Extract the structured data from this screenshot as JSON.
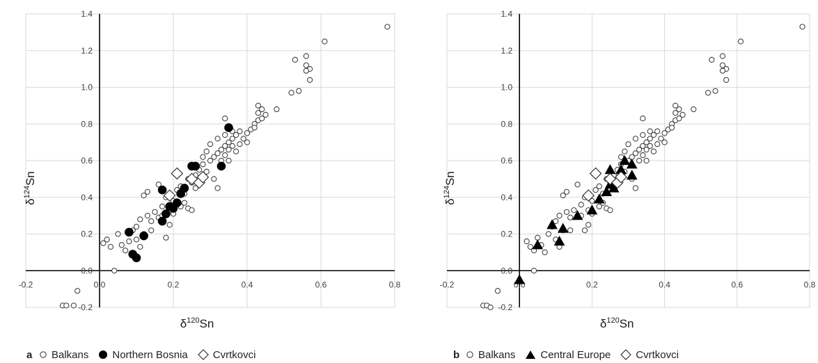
{
  "colors": {
    "open_marker": "#ffffff",
    "marker_edge": "#444444",
    "filled_marker": "#000000",
    "grid": "#d9d9d9"
  },
  "chart_data": [
    {
      "type": "scatter",
      "panel_label": "a",
      "xlabel": "δ¹²⁰Sn",
      "xlabel_base": "δ",
      "xlabel_sup": "120",
      "xlabel_tail": "Sn",
      "ylabel_base": "δ",
      "ylabel_sup": "124",
      "ylabel_tail": "Sn",
      "xlim": [
        -0.2,
        0.8
      ],
      "ylim": [
        -0.2,
        1.4
      ],
      "x_ticks": [
        -0.2,
        0.0,
        0.2,
        0.4,
        0.6,
        0.8
      ],
      "y_ticks": [
        -0.2,
        0.0,
        0.2,
        0.4,
        0.6,
        0.8,
        1.0,
        1.2,
        1.4
      ],
      "x_tick_labels": [
        "-0.2",
        "0.0",
        "0.2",
        "0.4",
        "0.6",
        "0.8"
      ],
      "y_tick_labels": [
        "-0.2",
        "0.0",
        "0.2",
        "0.4",
        "0.6",
        "0.8",
        "1.0",
        "1.2",
        "1.4"
      ],
      "grid": true,
      "legend_position": "bottom",
      "series": [
        {
          "name": "Balkans",
          "marker": "open-circle",
          "points": [
            [
              -0.1,
              -0.19
            ],
            [
              -0.09,
              -0.19
            ],
            [
              -0.07,
              -0.19
            ],
            [
              -0.06,
              -0.11
            ],
            [
              0.04,
              0.0
            ],
            [
              0.01,
              0.15
            ],
            [
              0.02,
              0.17
            ],
            [
              0.03,
              0.13
            ],
            [
              0.05,
              0.2
            ],
            [
              0.06,
              0.14
            ],
            [
              0.07,
              0.11
            ],
            [
              0.08,
              0.16
            ],
            [
              0.09,
              0.22
            ],
            [
              0.1,
              0.24
            ],
            [
              0.11,
              0.28
            ],
            [
              0.12,
              0.2
            ],
            [
              0.13,
              0.3
            ],
            [
              0.14,
              0.27
            ],
            [
              0.15,
              0.32
            ],
            [
              0.16,
              0.29
            ],
            [
              0.17,
              0.35
            ],
            [
              0.12,
              0.41
            ],
            [
              0.13,
              0.43
            ],
            [
              0.16,
              0.47
            ],
            [
              0.18,
              0.4
            ],
            [
              0.2,
              0.38
            ],
            [
              0.21,
              0.44
            ],
            [
              0.22,
              0.46
            ],
            [
              0.23,
              0.42
            ],
            [
              0.24,
              0.5
            ],
            [
              0.25,
              0.48
            ],
            [
              0.26,
              0.52
            ],
            [
              0.22,
              0.35
            ],
            [
              0.19,
              0.25
            ],
            [
              0.2,
              0.31
            ],
            [
              0.18,
              0.18
            ],
            [
              0.24,
              0.34
            ],
            [
              0.25,
              0.33
            ],
            [
              0.27,
              0.55
            ],
            [
              0.28,
              0.58
            ],
            [
              0.29,
              0.54
            ],
            [
              0.3,
              0.6
            ],
            [
              0.31,
              0.62
            ],
            [
              0.32,
              0.64
            ],
            [
              0.31,
              0.5
            ],
            [
              0.33,
              0.66
            ],
            [
              0.34,
              0.68
            ],
            [
              0.35,
              0.7
            ],
            [
              0.36,
              0.72
            ],
            [
              0.33,
              0.6
            ],
            [
              0.34,
              0.63
            ],
            [
              0.35,
              0.66
            ],
            [
              0.36,
              0.68
            ],
            [
              0.37,
              0.74
            ],
            [
              0.38,
              0.76
            ],
            [
              0.37,
              0.65
            ],
            [
              0.38,
              0.69
            ],
            [
              0.39,
              0.72
            ],
            [
              0.4,
              0.7
            ],
            [
              0.41,
              0.77
            ],
            [
              0.42,
              0.8
            ],
            [
              0.43,
              0.82
            ],
            [
              0.44,
              0.83
            ],
            [
              0.4,
              0.75
            ],
            [
              0.42,
              0.78
            ],
            [
              0.43,
              0.86
            ],
            [
              0.43,
              0.9
            ],
            [
              0.44,
              0.88
            ],
            [
              0.45,
              0.85
            ],
            [
              0.3,
              0.69
            ],
            [
              0.32,
              0.72
            ],
            [
              0.34,
              0.74
            ],
            [
              0.36,
              0.76
            ],
            [
              0.34,
              0.83
            ],
            [
              0.32,
              0.45
            ],
            [
              0.48,
              0.88
            ],
            [
              0.52,
              0.97
            ],
            [
              0.54,
              0.98
            ],
            [
              0.53,
              1.15
            ],
            [
              0.56,
              1.17
            ],
            [
              0.57,
              1.1
            ],
            [
              0.56,
              1.12
            ],
            [
              0.57,
              1.04
            ],
            [
              0.56,
              1.09
            ],
            [
              0.61,
              1.25
            ],
            [
              0.78,
              1.33
            ],
            [
              0.29,
              0.65
            ],
            [
              0.35,
              0.6
            ],
            [
              0.28,
              0.62
            ],
            [
              0.14,
              0.22
            ],
            [
              0.1,
              0.17
            ],
            [
              0.11,
              0.13
            ],
            [
              0.17,
              0.3
            ],
            [
              0.19,
              0.33
            ],
            [
              0.23,
              0.37
            ],
            [
              0.26,
              0.45
            ]
          ]
        },
        {
          "name": "Northern Bosnia",
          "marker": "filled-circle",
          "points": [
            [
              0.08,
              0.21
            ],
            [
              0.09,
              0.09
            ],
            [
              0.1,
              0.07
            ],
            [
              0.12,
              0.19
            ],
            [
              0.17,
              0.44
            ],
            [
              0.17,
              0.27
            ],
            [
              0.18,
              0.31
            ],
            [
              0.19,
              0.35
            ],
            [
              0.2,
              0.34
            ],
            [
              0.21,
              0.37
            ],
            [
              0.22,
              0.42
            ],
            [
              0.23,
              0.45
            ],
            [
              0.25,
              0.57
            ],
            [
              0.26,
              0.57
            ],
            [
              0.33,
              0.57
            ],
            [
              0.35,
              0.78
            ]
          ]
        },
        {
          "name": "Cvrtkovci",
          "marker": "open-diamond",
          "points": [
            [
              0.19,
              0.41
            ],
            [
              0.21,
              0.53
            ],
            [
              0.25,
              0.5
            ],
            [
              0.27,
              0.48
            ],
            [
              0.28,
              0.51
            ]
          ]
        }
      ]
    },
    {
      "type": "scatter",
      "panel_label": "b",
      "xlabel": "δ¹²⁰Sn",
      "xlabel_base": "δ",
      "xlabel_sup": "120",
      "xlabel_tail": "Sn",
      "ylabel_base": "δ",
      "ylabel_sup": "124",
      "ylabel_tail": "Sn",
      "xlim": [
        -0.2,
        0.8
      ],
      "ylim": [
        -0.2,
        1.4
      ],
      "x_ticks": [
        -0.2,
        0.0,
        0.2,
        0.4,
        0.6,
        0.8
      ],
      "y_ticks": [
        -0.2,
        0.0,
        0.2,
        0.4,
        0.6,
        0.8,
        1.0,
        1.2,
        1.4
      ],
      "x_tick_labels": [
        "-0.2",
        "0.0",
        "0.2",
        "0.4",
        "0.6",
        "0.8"
      ],
      "y_tick_labels": [
        "-0.2",
        "0.0",
        "0.2",
        "0.4",
        "0.6",
        "0.8",
        "1.0",
        "1.2",
        "1.4"
      ],
      "grid": true,
      "legend_position": "bottom",
      "series": [
        {
          "name": "Balkans",
          "marker": "open-circle",
          "points": [
            [
              -0.1,
              -0.19
            ],
            [
              -0.09,
              -0.19
            ],
            [
              -0.08,
              -0.2
            ],
            [
              -0.06,
              -0.11
            ],
            [
              0.04,
              0.0
            ],
            [
              0.02,
              0.16
            ],
            [
              0.03,
              0.13
            ],
            [
              0.04,
              0.11
            ],
            [
              0.05,
              0.18
            ],
            [
              0.06,
              0.14
            ],
            [
              0.07,
              0.1
            ],
            [
              0.08,
              0.2
            ],
            [
              0.09,
              0.24
            ],
            [
              0.1,
              0.27
            ],
            [
              0.11,
              0.3
            ],
            [
              0.12,
              0.22
            ],
            [
              0.13,
              0.32
            ],
            [
              0.14,
              0.29
            ],
            [
              0.15,
              0.33
            ],
            [
              0.16,
              0.3
            ],
            [
              0.17,
              0.36
            ],
            [
              0.12,
              0.41
            ],
            [
              0.13,
              0.43
            ],
            [
              0.16,
              0.47
            ],
            [
              0.18,
              0.4
            ],
            [
              0.2,
              0.38
            ],
            [
              0.21,
              0.44
            ],
            [
              0.22,
              0.46
            ],
            [
              0.23,
              0.42
            ],
            [
              0.24,
              0.5
            ],
            [
              0.25,
              0.48
            ],
            [
              0.26,
              0.52
            ],
            [
              0.22,
              0.35
            ],
            [
              0.19,
              0.25
            ],
            [
              0.2,
              0.31
            ],
            [
              0.18,
              0.22
            ],
            [
              0.24,
              0.34
            ],
            [
              0.25,
              0.33
            ],
            [
              0.27,
              0.55
            ],
            [
              0.28,
              0.58
            ],
            [
              0.29,
              0.54
            ],
            [
              0.3,
              0.6
            ],
            [
              0.31,
              0.62
            ],
            [
              0.32,
              0.64
            ],
            [
              0.31,
              0.5
            ],
            [
              0.33,
              0.66
            ],
            [
              0.34,
              0.68
            ],
            [
              0.35,
              0.7
            ],
            [
              0.36,
              0.72
            ],
            [
              0.33,
              0.6
            ],
            [
              0.34,
              0.63
            ],
            [
              0.35,
              0.66
            ],
            [
              0.36,
              0.68
            ],
            [
              0.37,
              0.74
            ],
            [
              0.38,
              0.76
            ],
            [
              0.37,
              0.65
            ],
            [
              0.38,
              0.69
            ],
            [
              0.39,
              0.72
            ],
            [
              0.4,
              0.7
            ],
            [
              0.41,
              0.77
            ],
            [
              0.42,
              0.8
            ],
            [
              0.43,
              0.82
            ],
            [
              0.44,
              0.83
            ],
            [
              0.4,
              0.75
            ],
            [
              0.42,
              0.78
            ],
            [
              0.43,
              0.86
            ],
            [
              0.43,
              0.9
            ],
            [
              0.44,
              0.88
            ],
            [
              0.45,
              0.85
            ],
            [
              0.3,
              0.69
            ],
            [
              0.32,
              0.72
            ],
            [
              0.34,
              0.74
            ],
            [
              0.36,
              0.76
            ],
            [
              0.34,
              0.83
            ],
            [
              0.32,
              0.45
            ],
            [
              0.48,
              0.88
            ],
            [
              0.52,
              0.97
            ],
            [
              0.54,
              0.98
            ],
            [
              0.53,
              1.15
            ],
            [
              0.56,
              1.17
            ],
            [
              0.57,
              1.1
            ],
            [
              0.56,
              1.12
            ],
            [
              0.57,
              1.04
            ],
            [
              0.56,
              1.09
            ],
            [
              0.61,
              1.25
            ],
            [
              0.78,
              1.33
            ],
            [
              0.29,
              0.65
            ],
            [
              0.35,
              0.6
            ],
            [
              0.28,
              0.62
            ],
            [
              0.14,
              0.22
            ],
            [
              0.1,
              0.17
            ],
            [
              0.11,
              0.13
            ],
            [
              0.17,
              0.3
            ],
            [
              0.19,
              0.33
            ],
            [
              0.23,
              0.37
            ],
            [
              0.26,
              0.45
            ]
          ]
        },
        {
          "name": "Central Europe",
          "marker": "filled-triangle",
          "points": [
            [
              0.0,
              -0.05
            ],
            [
              0.05,
              0.14
            ],
            [
              0.09,
              0.25
            ],
            [
              0.11,
              0.16
            ],
            [
              0.12,
              0.23
            ],
            [
              0.16,
              0.3
            ],
            [
              0.2,
              0.33
            ],
            [
              0.22,
              0.39
            ],
            [
              0.24,
              0.43
            ],
            [
              0.25,
              0.47
            ],
            [
              0.25,
              0.55
            ],
            [
              0.26,
              0.45
            ],
            [
              0.28,
              0.55
            ],
            [
              0.29,
              0.6
            ],
            [
              0.31,
              0.58
            ],
            [
              0.31,
              0.52
            ]
          ]
        },
        {
          "name": "Cvrtkovci",
          "marker": "open-diamond",
          "points": [
            [
              0.19,
              0.41
            ],
            [
              0.21,
              0.53
            ],
            [
              0.25,
              0.5
            ],
            [
              0.27,
              0.48
            ],
            [
              0.28,
              0.51
            ]
          ]
        }
      ]
    }
  ]
}
